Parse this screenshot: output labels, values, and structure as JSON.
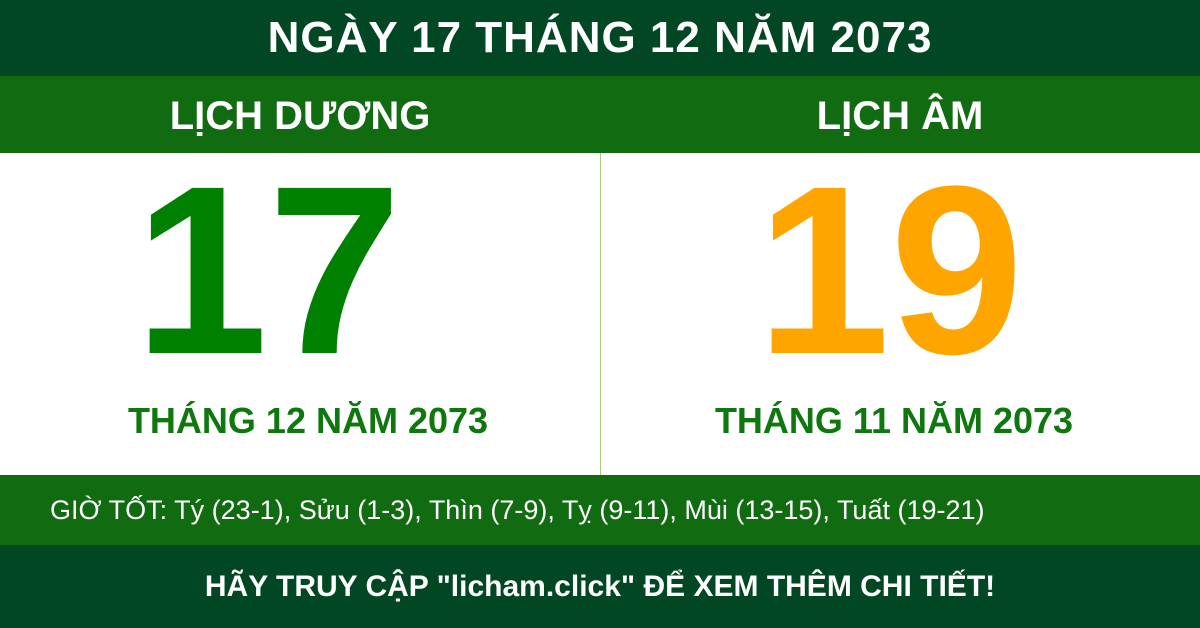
{
  "title": "NGÀY 17 THÁNG 12 NĂM 2073",
  "solar": {
    "label": "LỊCH DƯƠNG",
    "day": "17",
    "month_year": "THÁNG 12 NĂM 2073",
    "color": "#008000"
  },
  "lunar": {
    "label": "LỊCH ÂM",
    "day": "19",
    "month_year": "THÁNG 11 NĂM 2073",
    "color": "#ffa500"
  },
  "good_hours": "GIỜ TỐT: Tý (23-1), Sửu (1-3), Thìn (7-9), Tỵ (9-11), Mùi (13-15), Tuất (19-21)",
  "footer": "HÃY TRUY CẬP \"licham.click\" ĐỂ XEM THÊM CHI TIẾT!",
  "colors": {
    "dark_green": "#024723",
    "band_green": "#116b11"
  }
}
